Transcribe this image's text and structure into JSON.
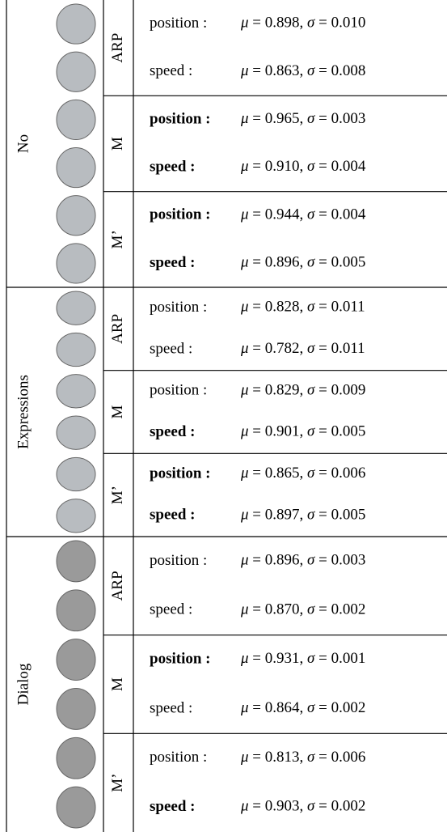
{
  "groups": [
    {
      "label": "No",
      "methods": [
        {
          "label": "ARP",
          "rows": [
            {
              "metric": "position :",
              "value": "μ = 0.898, σ = 0.010",
              "bold": false
            },
            {
              "metric": "speed :",
              "value": "μ = 0.863, σ = 0.008",
              "bold": false
            }
          ]
        },
        {
          "label": "M",
          "rows": [
            {
              "metric": "position :",
              "value": "μ = 0.965, σ = 0.003",
              "bold": true
            },
            {
              "metric": "speed :",
              "value": "μ = 0.910, σ = 0.004",
              "bold": true
            }
          ]
        },
        {
          "label": "M’",
          "rows": [
            {
              "metric": "position :",
              "value": "μ = 0.944, σ = 0.004",
              "bold": true
            },
            {
              "metric": "speed :",
              "value": "μ = 0.896, σ = 0.005",
              "bold": true
            }
          ]
        }
      ]
    },
    {
      "label": "Expressions",
      "methods": [
        {
          "label": "ARP",
          "rows": [
            {
              "metric": "position :",
              "value": "μ = 0.828, σ = 0.011",
              "bold": false
            },
            {
              "metric": "speed :",
              "value": "μ = 0.782, σ = 0.011",
              "bold": false
            }
          ]
        },
        {
          "label": "M",
          "rows": [
            {
              "metric": "position :",
              "value": "μ = 0.829, σ = 0.009",
              "bold": false
            },
            {
              "metric": "speed :",
              "value": "μ = 0.901, σ = 0.005",
              "bold": true
            }
          ]
        },
        {
          "label": "M’",
          "rows": [
            {
              "metric": "position :",
              "value": "μ = 0.865, σ = 0.006",
              "bold": true
            },
            {
              "metric": "speed :",
              "value": "μ = 0.897, σ = 0.005",
              "bold": true
            }
          ]
        }
      ]
    },
    {
      "label": "Dialog",
      "methods": [
        {
          "label": "ARP",
          "rows": [
            {
              "metric": "position :",
              "value": "μ = 0.896, σ = 0.003",
              "bold": false
            },
            {
              "metric": "speed :",
              "value": "μ = 0.870, σ = 0.002",
              "bold": false
            }
          ]
        },
        {
          "label": "M",
          "rows": [
            {
              "metric": "position :",
              "value": "μ = 0.931, σ = 0.001",
              "bold": true
            },
            {
              "metric": "speed :",
              "value": "μ = 0.864, σ = 0.002",
              "bold": false
            }
          ]
        },
        {
          "label": "M’",
          "rows": [
            {
              "metric": "position :",
              "value": "μ = 0.813, σ = 0.006",
              "bold": false
            },
            {
              "metric": "speed :",
              "value": "μ = 0.903, σ = 0.002",
              "bold": true
            }
          ]
        }
      ]
    }
  ]
}
